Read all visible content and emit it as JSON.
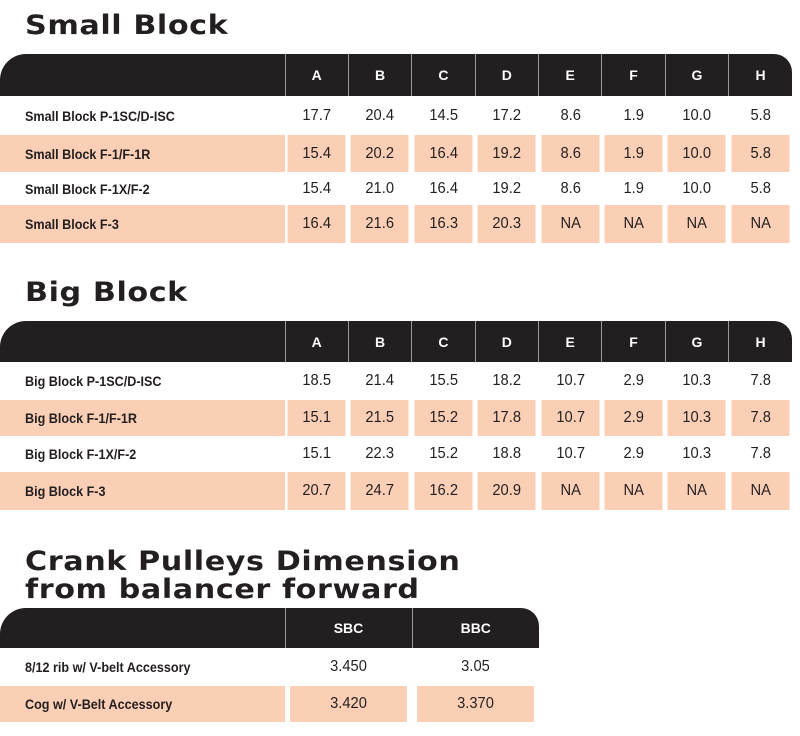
{
  "small_block": {
    "title": "Small Block",
    "columns": [
      "A",
      "B",
      "C",
      "D",
      "E",
      "F",
      "G",
      "H"
    ],
    "rows": [
      {
        "label": "Small Block  P-1SC/D-ISC",
        "values": [
          "17.7",
          "20.4",
          "14.5",
          "17.2",
          "8.6",
          "1.9",
          "10.0",
          "5.8"
        ]
      },
      {
        "label": "Small Block  F-1/F-1R",
        "values": [
          "15.4",
          "20.2",
          "16.4",
          "19.2",
          "8.6",
          "1.9",
          "10.0",
          "5.8"
        ]
      },
      {
        "label": "Small Block  F-1X/F-2",
        "values": [
          "15.4",
          "21.0",
          "16.4",
          "19.2",
          "8.6",
          "1.9",
          "10.0",
          "5.8"
        ]
      },
      {
        "label": "Small Block  F-3",
        "values": [
          "16.4",
          "21.6",
          "16.3",
          "20.3",
          "NA",
          "NA",
          "NA",
          "NA"
        ]
      }
    ]
  },
  "big_block": {
    "title": "Big Block",
    "columns": [
      "A",
      "B",
      "C",
      "D",
      "E",
      "F",
      "G",
      "H"
    ],
    "rows": [
      {
        "label": "Big Block  P-1SC/D-ISC",
        "values": [
          "18.5",
          "21.4",
          "15.5",
          "18.2",
          "10.7",
          "2.9",
          "10.3",
          "7.8"
        ]
      },
      {
        "label": "Big Block  F-1/F-1R",
        "values": [
          "15.1",
          "21.5",
          "15.2",
          "17.8",
          "10.7",
          "2.9",
          "10.3",
          "7.8"
        ]
      },
      {
        "label": "Big Block  F-1X/F-2",
        "values": [
          "15.1",
          "22.3",
          "15.2",
          "18.8",
          "10.7",
          "2.9",
          "10.3",
          "7.8"
        ]
      },
      {
        "label": "Big Block  F-3",
        "values": [
          "20.7",
          "24.7",
          "16.2",
          "20.9",
          "NA",
          "NA",
          "NA",
          "NA"
        ]
      }
    ]
  },
  "crank_pulleys": {
    "title_line1": "Crank Pulleys Dimension",
    "title_line2": "from balancer forward",
    "columns": [
      "SBC",
      "BBC"
    ],
    "rows": [
      {
        "label": "8/12 rib w/ V-belt Accessory",
        "values": [
          "3.450",
          "3.05"
        ]
      },
      {
        "label": "Cog w/ V-Belt Accessory",
        "values": [
          "3.420",
          "3.370"
        ]
      }
    ]
  },
  "colors": {
    "header": "#231f20",
    "stripe": "#fbcfb5"
  }
}
